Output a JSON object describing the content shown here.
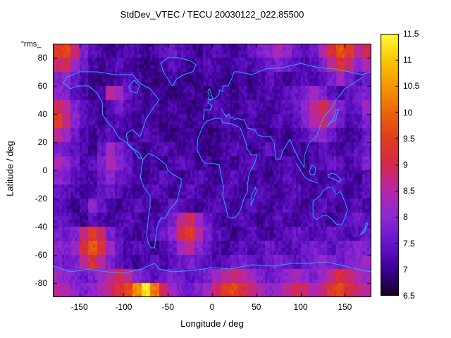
{
  "title": "StdDev_VTEC / TECU 20030122_022.85500",
  "stray_label": "\"rms_",
  "axes": {
    "x": {
      "label": "Longitude / deg",
      "ticks": [
        -150,
        -100,
        -50,
        0,
        50,
        100,
        150
      ],
      "min": -180,
      "max": 180
    },
    "y": {
      "label": "Latitude / deg",
      "ticks": [
        -80,
        -60,
        -40,
        -20,
        0,
        20,
        40,
        60,
        80
      ],
      "min": -90,
      "max": 90
    }
  },
  "colorbar": {
    "ticks": [
      6.5,
      7,
      7.5,
      8,
      8.5,
      9,
      9.5,
      10,
      10.5,
      11,
      11.5
    ],
    "min": 6.5,
    "max": 11.5
  },
  "colors": {
    "background": "#ffffff",
    "border": "#000000",
    "coastline": "#21aaff",
    "colormap": [
      {
        "v": 6.5,
        "c": "#140020"
      },
      {
        "v": 7.0,
        "c": "#3c0096"
      },
      {
        "v": 7.5,
        "c": "#6414c8"
      },
      {
        "v": 8.0,
        "c": "#8c28d2"
      },
      {
        "v": 8.5,
        "c": "#b428aa"
      },
      {
        "v": 9.0,
        "c": "#d22850"
      },
      {
        "v": 9.5,
        "c": "#e13c1e"
      },
      {
        "v": 10.0,
        "c": "#eb640a"
      },
      {
        "v": 10.5,
        "c": "#f59600"
      },
      {
        "v": 11.0,
        "c": "#fac800"
      },
      {
        "v": 11.5,
        "c": "#fffa3c"
      }
    ]
  },
  "chart_data": {
    "type": "heatmap",
    "title": "StdDev_VTEC / TECU 20030122_022.85500",
    "xlabel": "Longitude / deg",
    "ylabel": "Latitude / deg",
    "zlabel": "StdDev_VTEC / TECU",
    "xlim": [
      -180,
      180
    ],
    "ylim": [
      -90,
      90
    ],
    "zlim": [
      6.5,
      11.5
    ],
    "cell_size_deg": 10,
    "lat_start": 85,
    "lat_step": -10,
    "lon_start": -175,
    "lon_step": 10,
    "grid": [
      [
        9.4,
        9.6,
        8.8,
        7.8,
        7.4,
        7.2,
        7.0,
        7.2,
        7.4,
        7.2,
        7.0,
        7.2,
        7.4,
        7.6,
        7.4,
        7.2,
        7.0,
        7.2,
        7.4,
        7.2,
        7.0,
        7.2,
        7.6,
        7.8,
        8.0,
        8.4,
        8.0,
        7.6,
        7.4,
        7.6,
        8.4,
        9.2,
        9.8,
        9.4,
        8.6,
        9.0
      ],
      [
        8.8,
        9.0,
        8.2,
        7.6,
        7.2,
        7.0,
        7.2,
        7.4,
        7.2,
        7.0,
        6.9,
        7.0,
        7.2,
        7.4,
        7.2,
        7.0,
        7.2,
        7.4,
        7.2,
        7.0,
        7.2,
        7.4,
        7.2,
        7.4,
        7.6,
        7.8,
        7.6,
        7.4,
        7.2,
        7.4,
        7.8,
        8.6,
        9.2,
        8.8,
        8.0,
        8.4
      ],
      [
        7.8,
        8.0,
        7.6,
        7.2,
        7.0,
        6.9,
        7.0,
        7.2,
        7.4,
        7.2,
        7.0,
        6.9,
        7.0,
        7.2,
        7.0,
        6.9,
        7.0,
        7.2,
        7.0,
        6.9,
        7.0,
        7.2,
        7.0,
        7.2,
        7.4,
        7.2,
        7.0,
        7.2,
        7.4,
        7.2,
        7.4,
        7.8,
        8.2,
        7.8,
        7.4,
        7.6
      ],
      [
        8.0,
        7.8,
        7.4,
        7.2,
        7.0,
        7.2,
        8.6,
        8.2,
        7.6,
        7.2,
        7.0,
        7.2,
        7.0,
        6.9,
        7.0,
        7.2,
        7.0,
        6.9,
        7.0,
        7.2,
        7.0,
        7.2,
        7.0,
        7.2,
        7.4,
        7.2,
        7.4,
        7.6,
        7.8,
        8.2,
        7.8,
        7.4,
        7.2,
        7.4,
        7.6,
        7.8
      ],
      [
        9.0,
        8.6,
        7.8,
        7.4,
        7.2,
        7.0,
        7.4,
        7.8,
        7.4,
        7.2,
        7.0,
        7.2,
        7.0,
        7.2,
        7.0,
        6.9,
        7.0,
        7.2,
        7.4,
        7.2,
        7.0,
        7.2,
        7.4,
        7.2,
        7.0,
        7.2,
        7.4,
        7.6,
        8.0,
        8.6,
        9.0,
        8.4,
        7.8,
        7.4,
        7.6,
        8.2
      ],
      [
        9.4,
        8.8,
        8.0,
        7.4,
        7.2,
        7.0,
        7.2,
        7.4,
        7.2,
        7.0,
        7.2,
        7.0,
        6.9,
        7.0,
        7.2,
        7.0,
        7.2,
        7.0,
        7.2,
        7.4,
        7.2,
        7.0,
        7.2,
        7.0,
        7.2,
        7.4,
        7.2,
        7.4,
        7.8,
        8.4,
        8.8,
        8.2,
        7.6,
        7.2,
        7.4,
        7.8
      ],
      [
        8.6,
        8.2,
        7.6,
        7.2,
        7.0,
        7.2,
        7.4,
        7.2,
        7.0,
        7.2,
        7.4,
        7.2,
        7.0,
        6.9,
        7.0,
        7.2,
        7.0,
        6.9,
        7.0,
        7.2,
        7.0,
        7.2,
        7.4,
        7.2,
        7.0,
        7.2,
        7.0,
        7.2,
        7.4,
        7.8,
        8.0,
        7.6,
        7.2,
        7.0,
        7.2,
        7.6
      ],
      [
        7.8,
        7.6,
        7.4,
        7.2,
        7.0,
        7.6,
        8.2,
        7.8,
        7.4,
        7.2,
        7.0,
        7.2,
        7.4,
        7.2,
        7.0,
        7.2,
        7.0,
        6.9,
        7.0,
        7.2,
        7.4,
        7.2,
        7.0,
        7.2,
        7.4,
        7.2,
        7.0,
        7.2,
        7.0,
        7.2,
        7.4,
        7.2,
        7.0,
        7.2,
        7.4,
        7.6
      ],
      [
        8.4,
        8.0,
        7.6,
        7.2,
        7.4,
        7.8,
        8.4,
        8.0,
        7.6,
        7.2,
        7.0,
        7.2,
        7.0,
        7.2,
        7.4,
        7.2,
        7.0,
        7.2,
        7.0,
        7.2,
        7.0,
        7.2,
        7.4,
        7.2,
        7.0,
        7.2,
        7.4,
        7.2,
        7.0,
        7.2,
        7.4,
        7.6,
        7.4,
        7.2,
        7.4,
        7.8
      ],
      [
        8.0,
        7.8,
        7.4,
        7.2,
        7.2,
        7.6,
        8.0,
        7.6,
        7.4,
        7.2,
        7.0,
        7.2,
        7.4,
        7.2,
        7.0,
        7.2,
        7.4,
        7.2,
        7.0,
        7.2,
        7.4,
        7.2,
        7.0,
        7.2,
        7.0,
        7.2,
        7.4,
        7.2,
        7.0,
        7.2,
        7.0,
        7.2,
        7.4,
        7.2,
        7.0,
        7.4
      ],
      [
        7.6,
        7.4,
        7.2,
        7.0,
        7.2,
        7.4,
        7.6,
        7.4,
        7.2,
        7.0,
        7.2,
        7.4,
        7.2,
        7.0,
        7.2,
        7.4,
        7.2,
        7.0,
        7.2,
        7.4,
        7.2,
        7.0,
        7.2,
        7.4,
        7.2,
        7.0,
        7.2,
        7.4,
        7.2,
        7.0,
        7.2,
        7.4,
        7.2,
        7.0,
        7.2,
        7.4
      ],
      [
        7.4,
        7.2,
        7.0,
        7.2,
        8.0,
        7.6,
        7.2,
        7.0,
        7.2,
        7.4,
        7.2,
        7.0,
        7.2,
        7.6,
        7.4,
        7.2,
        7.0,
        7.2,
        7.4,
        7.2,
        7.0,
        7.2,
        7.4,
        7.2,
        7.0,
        7.2,
        7.4,
        7.2,
        7.0,
        7.2,
        7.4,
        7.2,
        7.0,
        7.2,
        7.4,
        7.2
      ],
      [
        7.6,
        7.4,
        7.2,
        7.0,
        7.4,
        7.2,
        7.0,
        7.2,
        7.4,
        7.2,
        7.0,
        7.2,
        7.4,
        7.8,
        8.6,
        9.0,
        8.2,
        7.6,
        7.2,
        7.0,
        7.2,
        7.4,
        7.2,
        7.0,
        7.2,
        7.4,
        7.2,
        7.0,
        7.2,
        7.4,
        7.2,
        7.0,
        7.2,
        7.4,
        7.6,
        7.4
      ],
      [
        7.8,
        7.6,
        7.8,
        8.8,
        9.4,
        8.8,
        7.8,
        7.4,
        7.2,
        7.0,
        7.2,
        7.4,
        7.6,
        8.0,
        9.0,
        9.4,
        8.6,
        7.8,
        7.4,
        7.2,
        7.0,
        7.2,
        7.4,
        7.2,
        7.0,
        7.2,
        7.4,
        7.6,
        7.4,
        7.2,
        7.4,
        7.6,
        7.4,
        7.2,
        7.4,
        7.6
      ],
      [
        8.0,
        7.8,
        8.2,
        9.2,
        9.8,
        9.2,
        8.2,
        7.6,
        7.2,
        7.4,
        7.2,
        7.0,
        7.2,
        7.6,
        8.2,
        8.6,
        8.0,
        7.6,
        7.2,
        7.0,
        7.2,
        7.4,
        7.2,
        7.4,
        7.6,
        7.4,
        7.2,
        7.4,
        7.6,
        7.8,
        7.6,
        7.4,
        7.6,
        7.8,
        8.0,
        7.8
      ],
      [
        7.8,
        7.6,
        7.8,
        8.6,
        9.2,
        8.6,
        7.8,
        7.4,
        7.2,
        7.0,
        7.2,
        7.4,
        7.2,
        7.4,
        7.6,
        7.8,
        7.6,
        7.4,
        7.2,
        7.4,
        7.6,
        7.8,
        7.6,
        7.4,
        7.6,
        7.8,
        7.6,
        7.4,
        7.6,
        7.8,
        8.0,
        7.8,
        7.6,
        7.8,
        8.0,
        8.2
      ],
      [
        8.2,
        8.0,
        7.8,
        7.6,
        7.8,
        8.2,
        8.6,
        9.0,
        8.6,
        8.0,
        7.6,
        7.4,
        7.6,
        7.8,
        7.6,
        7.4,
        7.6,
        7.8,
        8.2,
        8.6,
        8.8,
        8.6,
        8.2,
        7.8,
        7.6,
        7.8,
        8.0,
        8.2,
        8.0,
        7.8,
        8.2,
        8.8,
        9.2,
        8.8,
        8.4,
        8.2
      ],
      [
        8.6,
        8.4,
        8.0,
        7.8,
        8.0,
        8.4,
        8.8,
        9.2,
        9.6,
        10.4,
        11.3,
        10.2,
        9.0,
        8.2,
        7.8,
        7.6,
        7.8,
        8.2,
        8.8,
        9.4,
        9.6,
        9.2,
        8.8,
        8.4,
        8.0,
        8.2,
        8.6,
        9.0,
        8.8,
        8.4,
        8.8,
        9.4,
        9.6,
        9.2,
        8.8,
        8.6
      ]
    ]
  }
}
